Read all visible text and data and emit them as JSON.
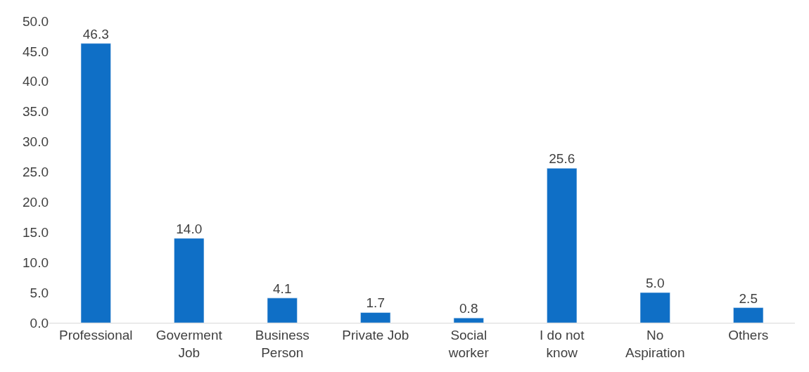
{
  "chart_data": {
    "type": "bar",
    "categories": [
      "Professional",
      "Goverment Job",
      "Business Person",
      "Private Job",
      "Social worker",
      "I do not know",
      "No Aspiration",
      "Others"
    ],
    "values": [
      46.3,
      14.0,
      4.1,
      1.7,
      0.8,
      25.6,
      5.0,
      2.5
    ],
    "value_labels": [
      "46.3",
      "14.0",
      "4.1",
      "1.7",
      "0.8",
      "25.6",
      "5.0",
      "2.5"
    ],
    "color": "#0f6fc6",
    "ylim": [
      0,
      50
    ],
    "yticks": [
      {
        "value": 0,
        "label": "0.0"
      },
      {
        "value": 5,
        "label": "5.0"
      },
      {
        "value": 10,
        "label": "10.0"
      },
      {
        "value": 15,
        "label": "15.0"
      },
      {
        "value": 20,
        "label": "20.0"
      },
      {
        "value": 25,
        "label": "25.0"
      },
      {
        "value": 30,
        "label": "30.0"
      },
      {
        "value": 35,
        "label": "35.0"
      },
      {
        "value": 40,
        "label": "40.0"
      },
      {
        "value": 45,
        "label": "45.0"
      },
      {
        "value": 50,
        "label": "50.0"
      }
    ],
    "legend": false
  }
}
